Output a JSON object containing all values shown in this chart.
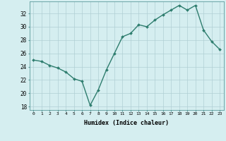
{
  "x": [
    0,
    1,
    2,
    3,
    4,
    5,
    6,
    7,
    8,
    9,
    10,
    11,
    12,
    13,
    14,
    15,
    16,
    17,
    18,
    19,
    20,
    21,
    22,
    23
  ],
  "y": [
    25.0,
    24.8,
    24.2,
    23.8,
    23.2,
    22.2,
    21.8,
    18.2,
    20.5,
    23.5,
    26.0,
    28.5,
    29.0,
    30.3,
    30.0,
    31.0,
    31.8,
    32.5,
    33.2,
    32.5,
    33.2,
    29.5,
    27.8,
    26.6
  ],
  "line_color": "#2e7d6e",
  "marker": "D",
  "marker_size": 2.0,
  "bg_color": "#d5eef0",
  "grid_color": "#b0cfd4",
  "xlabel": "Humidex (Indice chaleur)",
  "ylabel_ticks": [
    18,
    20,
    22,
    24,
    26,
    28,
    30,
    32
  ],
  "xtick_labels": [
    "0",
    "1",
    "2",
    "3",
    "4",
    "5",
    "6",
    "7",
    "8",
    "9",
    "10",
    "11",
    "12",
    "13",
    "14",
    "15",
    "16",
    "17",
    "18",
    "19",
    "20",
    "21",
    "22",
    "23"
  ],
  "xlim": [
    -0.5,
    23.5
  ],
  "ylim": [
    17.5,
    33.8
  ]
}
